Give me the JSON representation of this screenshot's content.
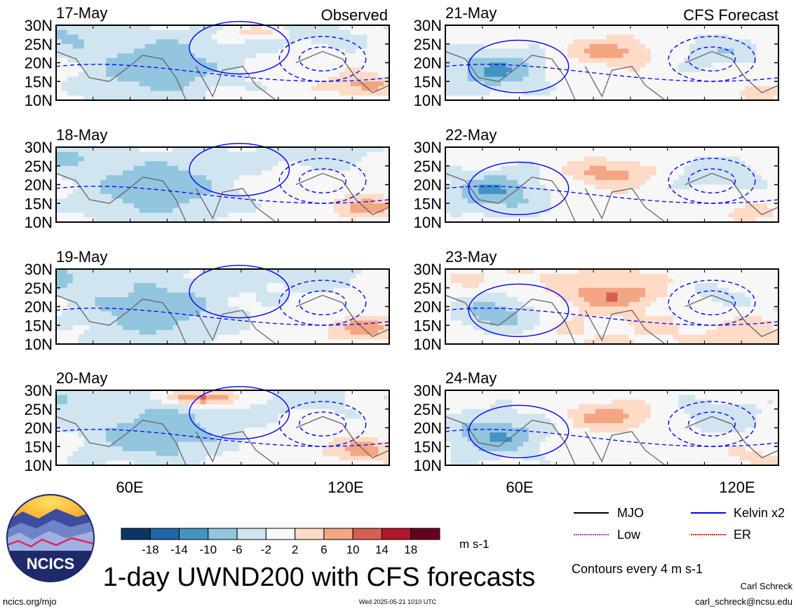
{
  "chart_data": {
    "type": "heatmap",
    "title": "1-day UWND200 with CFS forecasts",
    "variable": "UWND200",
    "units": "m s-1",
    "region": {
      "lon_range": [
        40,
        130
      ],
      "lat_range": [
        10,
        30
      ]
    },
    "lat_ticks": [
      "30N",
      "25N",
      "20N",
      "15N",
      "10N"
    ],
    "lon_ticks": [
      "60E",
      "120E"
    ],
    "colorbar": {
      "tick_labels": [
        "-18",
        "-14",
        "-10",
        "-6",
        "-2",
        "2",
        "6",
        "10",
        "14",
        "18"
      ],
      "colors": [
        "#0b3563",
        "#2166ac",
        "#4393c3",
        "#92c5de",
        "#d1e5f0",
        "#f7f7f7",
        "#fddbc7",
        "#f4a582",
        "#d6604d",
        "#b2182b",
        "#67001f"
      ]
    },
    "column_labels": {
      "left": "Observed",
      "right": "CFS Forecast"
    },
    "observed_dates": [
      "17-May",
      "18-May",
      "19-May",
      "20-May"
    ],
    "forecast_dates": [
      "21-May",
      "22-May",
      "23-May",
      "24-May"
    ],
    "legend": [
      {
        "label": "MJO",
        "color": "#000000"
      },
      {
        "label": "Kelvin x2",
        "color": "#0000ff"
      },
      {
        "label": "Low",
        "color": "#9b30ff"
      },
      {
        "label": "ER",
        "color": "#ff0000"
      }
    ],
    "contour_note": "Contours every 4 m s-1"
  },
  "footer": {
    "logo_text": "NCICS",
    "url": "ncics.org/mjo",
    "timestamp": "Wed 2025-05-21 1010 UTC",
    "author": "Carl Schreck",
    "email": "carl_schreck@ncsu.edu"
  }
}
